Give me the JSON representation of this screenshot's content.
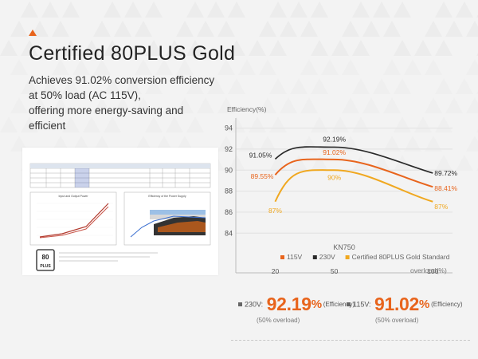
{
  "title": "Certified 80PLUS Gold",
  "subtitle_lines": [
    "Achieves 91.02% conversion efficiency",
    "at 50% load (AC 115V),",
    "offering more energy-saving and",
    "efficient"
  ],
  "colors": {
    "accent": "#e8641c",
    "s115": "#e8641c",
    "s230": "#2a2a2a",
    "gold": "#f0a820"
  },
  "chart_data": {
    "type": "line",
    "title": "KN750",
    "ylabel": "Efficiency(%)",
    "xlabel": "overload(%)",
    "x": [
      20,
      50,
      100
    ],
    "x_ticks": [
      "20",
      "50",
      "100"
    ],
    "y_ticks": [
      "84",
      "86",
      "88",
      "90",
      "92",
      "94"
    ],
    "ylim": [
      82.5,
      94.5
    ],
    "xlim": [
      0,
      110
    ],
    "series": [
      {
        "name": "115V",
        "values": [
          89.55,
          91.02,
          88.41
        ],
        "labels": [
          "89.55%",
          "91.02%",
          "88.41%"
        ]
      },
      {
        "name": "230V",
        "values": [
          91.05,
          92.19,
          89.72
        ],
        "labels": [
          "91.05%",
          "92.19%",
          "89.72%"
        ]
      },
      {
        "name": "Certified 80PLUS Gold Standard",
        "values": [
          87,
          90,
          87
        ],
        "labels": [
          "87%",
          "90%",
          "87%"
        ]
      }
    ]
  },
  "summary": [
    {
      "label": "230V:",
      "value": "92.19",
      "unit": "%",
      "eff": "(Efficiency)",
      "note": "(50% overload)"
    },
    {
      "label": "115V:",
      "value": "91.02",
      "unit": "%",
      "eff": "(Efficiency)",
      "note": "(50% overload)"
    }
  ],
  "report": {
    "chart1_title": "Input and Output Power",
    "chart2_title": "Efficiency of the Power Supply",
    "logo": "80 PLUS"
  }
}
